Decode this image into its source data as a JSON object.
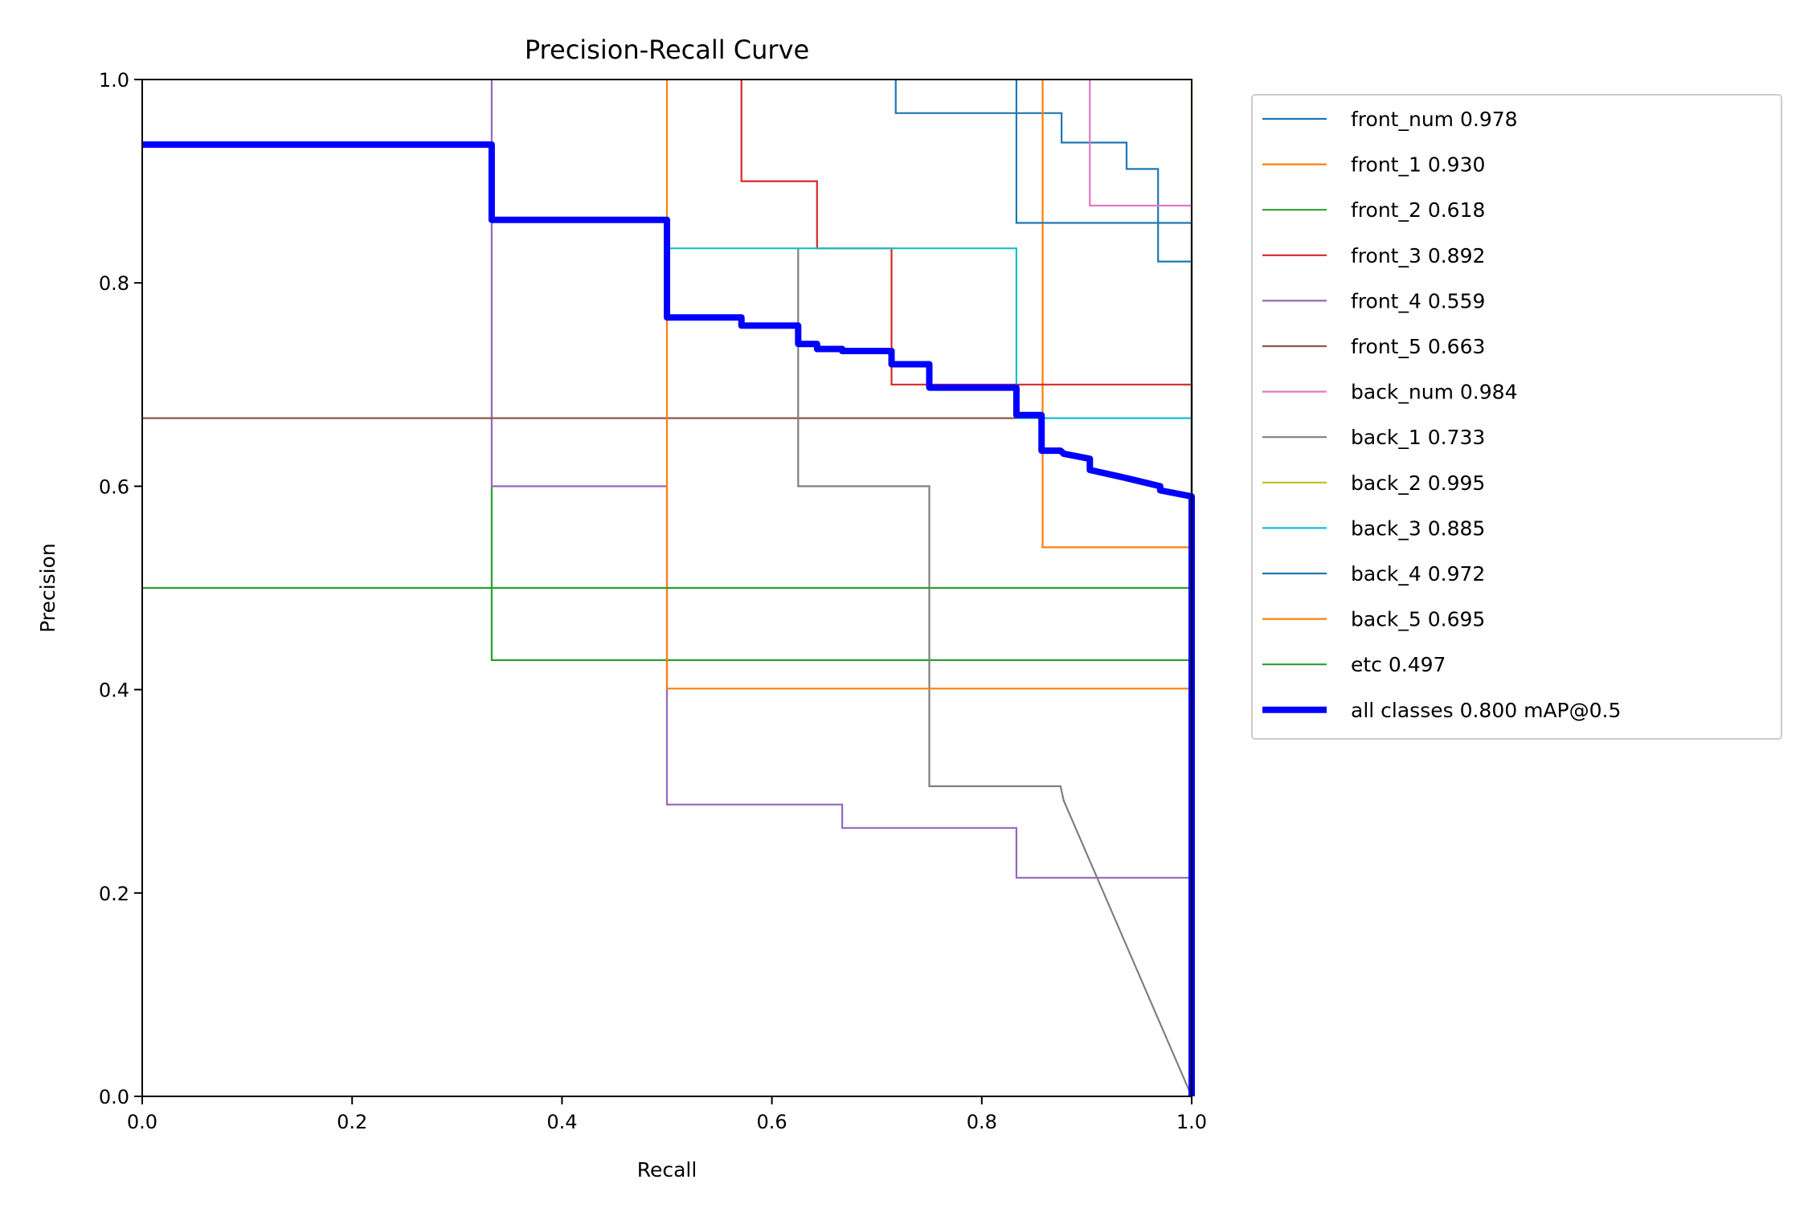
{
  "chart_data": {
    "type": "line",
    "title": "Precision-Recall Curve",
    "xlabel": "Recall",
    "ylabel": "Precision",
    "xlim": [
      0,
      1
    ],
    "ylim": [
      0,
      1
    ],
    "xticks": [
      "0.0",
      "0.2",
      "0.4",
      "0.6",
      "0.8",
      "1.0"
    ],
    "yticks": [
      "0.0",
      "0.2",
      "0.4",
      "0.6",
      "0.8",
      "1.0"
    ],
    "grid": false,
    "legend_position": "outside-top-right",
    "series": [
      {
        "name": "front_num 0.978",
        "color": "#1f77b4",
        "points": [
          [
            0.718,
            1.0
          ],
          [
            0.718,
            0.967
          ],
          [
            0.876,
            0.967
          ],
          [
            0.876,
            0.938
          ],
          [
            0.938,
            0.938
          ],
          [
            0.938,
            0.912
          ],
          [
            0.968,
            0.912
          ],
          [
            0.968,
            0.821
          ],
          [
            1.0,
            0.821
          ],
          [
            1.0,
            0.0
          ]
        ]
      },
      {
        "name": "front_1 0.930",
        "color": "#ff7f0e",
        "points": [
          [
            0.858,
            1.0
          ],
          [
            0.858,
            0.54
          ],
          [
            1.0,
            0.54
          ],
          [
            1.0,
            0.0
          ]
        ]
      },
      {
        "name": "front_2 0.618",
        "color": "#2ca02c",
        "points": [
          [
            0.333,
            0.6
          ],
          [
            0.333,
            0.429
          ],
          [
            1.0,
            0.429
          ],
          [
            1.0,
            0.0
          ]
        ]
      },
      {
        "name": "front_3 0.892",
        "color": "#d62728",
        "points": [
          [
            0.571,
            1.0
          ],
          [
            0.571,
            0.9
          ],
          [
            0.643,
            0.9
          ],
          [
            0.643,
            0.834
          ],
          [
            0.714,
            0.834
          ],
          [
            0.714,
            0.7
          ],
          [
            1.0,
            0.7
          ],
          [
            1.0,
            0.0
          ]
        ]
      },
      {
        "name": "front_4 0.559",
        "color": "#9467bd",
        "points": [
          [
            0.333,
            1.0
          ],
          [
            0.333,
            0.6
          ],
          [
            0.5,
            0.6
          ],
          [
            0.5,
            0.287
          ],
          [
            0.667,
            0.287
          ],
          [
            0.667,
            0.264
          ],
          [
            0.833,
            0.264
          ],
          [
            0.833,
            0.215
          ],
          [
            1.0,
            0.215
          ],
          [
            1.0,
            0.0
          ]
        ]
      },
      {
        "name": "front_5 0.663",
        "color": "#8c564b",
        "points": [
          [
            0.0,
            0.667
          ],
          [
            0.833,
            0.667
          ]
        ]
      },
      {
        "name": "back_num 0.984",
        "color": "#e377c2",
        "points": [
          [
            0.903,
            1.0
          ],
          [
            0.903,
            0.876
          ],
          [
            1.0,
            0.876
          ],
          [
            1.0,
            0.0
          ]
        ]
      },
      {
        "name": "back_1 0.733",
        "color": "#7f7f7f",
        "points": [
          [
            0.625,
            0.834
          ],
          [
            0.625,
            0.6
          ],
          [
            0.75,
            0.6
          ],
          [
            0.75,
            0.305
          ],
          [
            0.875,
            0.305
          ],
          [
            0.878,
            0.291
          ],
          [
            1.0,
            0.0
          ]
        ]
      },
      {
        "name": "back_2 0.995",
        "color": "#bcbd22",
        "points": [
          [
            1.0,
            1.0
          ],
          [
            1.0,
            0.0
          ]
        ]
      },
      {
        "name": "back_3 0.885",
        "color": "#17becf",
        "points": [
          [
            0.5,
            0.834
          ],
          [
            0.833,
            0.834
          ],
          [
            0.833,
            0.667
          ],
          [
            1.0,
            0.667
          ],
          [
            1.0,
            0.0
          ]
        ]
      },
      {
        "name": "back_4 0.972",
        "color": "#1f77b4",
        "points": [
          [
            0.833,
            1.0
          ],
          [
            0.833,
            0.859
          ],
          [
            1.0,
            0.859
          ],
          [
            1.0,
            0.0
          ]
        ]
      },
      {
        "name": "back_5 0.695",
        "color": "#ff7f0e",
        "points": [
          [
            0.5,
            1.0
          ],
          [
            0.5,
            0.401
          ],
          [
            1.0,
            0.401
          ],
          [
            1.0,
            0.0
          ]
        ]
      },
      {
        "name": "etc 0.497",
        "color": "#2ca02c",
        "points": [
          [
            0.0,
            0.5
          ],
          [
            1.0,
            0.5
          ],
          [
            1.0,
            0.0
          ]
        ]
      },
      {
        "name": "all classes 0.800 mAP@0.5",
        "color": "#0000ff",
        "bold": true,
        "points": [
          [
            0.0,
            0.936
          ],
          [
            0.333,
            0.936
          ],
          [
            0.333,
            0.862
          ],
          [
            0.5,
            0.862
          ],
          [
            0.5,
            0.766
          ],
          [
            0.571,
            0.766
          ],
          [
            0.571,
            0.758
          ],
          [
            0.625,
            0.758
          ],
          [
            0.625,
            0.74
          ],
          [
            0.643,
            0.74
          ],
          [
            0.643,
            0.735
          ],
          [
            0.667,
            0.735
          ],
          [
            0.667,
            0.733
          ],
          [
            0.714,
            0.733
          ],
          [
            0.714,
            0.72
          ],
          [
            0.75,
            0.72
          ],
          [
            0.75,
            0.697
          ],
          [
            0.833,
            0.697
          ],
          [
            0.833,
            0.67
          ],
          [
            0.857,
            0.67
          ],
          [
            0.857,
            0.635
          ],
          [
            0.875,
            0.635
          ],
          [
            0.878,
            0.632
          ],
          [
            0.903,
            0.627
          ],
          [
            0.903,
            0.616
          ],
          [
            0.938,
            0.608
          ],
          [
            0.97,
            0.6
          ],
          [
            0.97,
            0.596
          ],
          [
            1.0,
            0.59
          ],
          [
            1.0,
            0.0
          ]
        ]
      }
    ]
  }
}
